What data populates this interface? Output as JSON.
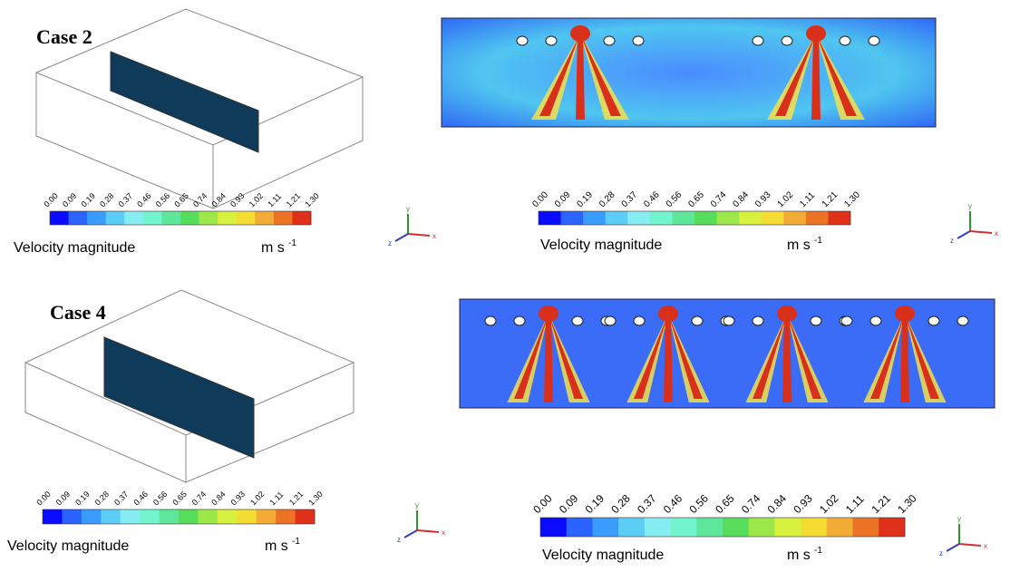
{
  "colorbar_colors": [
    "#0a0aff",
    "#2a63ff",
    "#3b9cff",
    "#5ccdf5",
    "#86eef2",
    "#72f5cf",
    "#5ee69a",
    "#58dc5c",
    "#9ce84a",
    "#d8f03e",
    "#f5dc33",
    "#f2ac35",
    "#ec7326",
    "#e0301a"
  ],
  "panels": [
    {
      "label": "Case 2",
      "colorbars": [
        {
          "ticks": [
            "0.00",
            "0.09",
            "0.19",
            "0.28",
            "0.37",
            "0.46",
            "0.56",
            "0.65",
            "0.74",
            "0.84",
            "0.93",
            "1.02",
            "1.11",
            "1.21",
            "1.30"
          ],
          "title": "Velocity magnitude",
          "unit": "m s",
          "unit_exp": "-1"
        },
        {
          "ticks": [
            "0.00",
            "0.09",
            "0.19",
            "0.28",
            "0.37",
            "0.46",
            "0.56",
            "0.65",
            "0.74",
            "0.84",
            "0.93",
            "1.02",
            "1.11",
            "1.21",
            "1.30"
          ],
          "title": "Velocity magnitude",
          "unit": "m s",
          "unit_exp": "-1"
        }
      ]
    },
    {
      "label": "Case 4",
      "colorbars": [
        {
          "ticks": [
            "0.00",
            "0.09",
            "0.19",
            "0.28",
            "0.37",
            "0.46",
            "0.56",
            "0.65",
            "0.74",
            "0.84",
            "0.93",
            "1.02",
            "1.11",
            "1.21",
            "1.30"
          ],
          "title": "Velocity magnitude",
          "unit": "m s",
          "unit_exp": "-1"
        },
        {
          "ticks": [
            "0.00",
            "0.09",
            "0.19",
            "0.28",
            "0.37",
            "0.46",
            "0.56",
            "0.65",
            "0.74",
            "0.84",
            "0.93",
            "1.02",
            "1.11",
            "1.21",
            "1.30"
          ],
          "title": "Velocity magnitude",
          "unit": "m s",
          "unit_exp": "-1"
        }
      ]
    }
  ],
  "axes_labels": {
    "x": "x",
    "y": "y",
    "z": "z"
  }
}
